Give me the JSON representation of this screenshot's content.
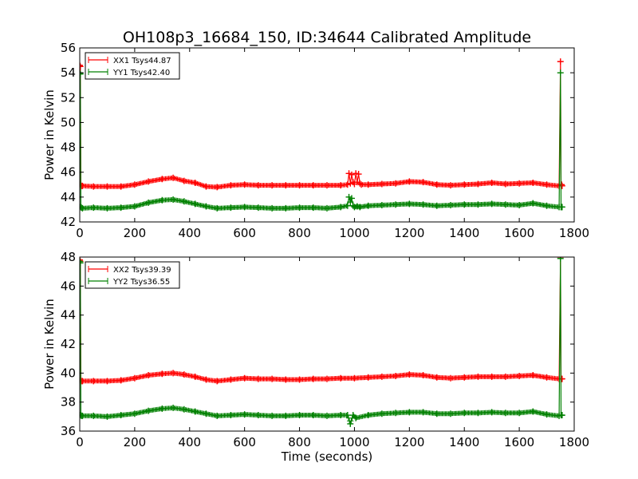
{
  "title": "OH108p3_16684_150, ID:34644 Calibrated Amplitude",
  "colors": {
    "xx": "#ff0000",
    "yy": "#008000"
  },
  "chart_data": [
    {
      "type": "line",
      "title": "OH108p3_16684_150, ID:34644 Calibrated Amplitude",
      "xlabel": "",
      "ylabel": "Power in Kelvin",
      "xlim": [
        0,
        1800
      ],
      "ylim": [
        42,
        56
      ],
      "xticks": [
        0,
        200,
        400,
        600,
        800,
        1000,
        1200,
        1400,
        1600,
        1800
      ],
      "yticks": [
        42,
        44,
        46,
        48,
        50,
        52,
        54,
        56
      ],
      "legend_position": "top-left",
      "marker": "plus",
      "series": [
        {
          "name": "XX1 Tsys44.87",
          "color": "#ff0000",
          "x": [
            0,
            2,
            4,
            6,
            10,
            50,
            100,
            150,
            200,
            250,
            300,
            340,
            380,
            420,
            460,
            500,
            550,
            600,
            650,
            700,
            750,
            800,
            850,
            900,
            950,
            975,
            980,
            985,
            990,
            995,
            1000,
            1005,
            1010,
            1015,
            1020,
            1025,
            1050,
            1100,
            1150,
            1200,
            1250,
            1300,
            1350,
            1400,
            1450,
            1500,
            1550,
            1600,
            1650,
            1700,
            1745,
            1750,
            1752,
            1754,
            1756
          ],
          "y": [
            54.6,
            54.5,
            45.0,
            44.9,
            44.9,
            44.85,
            44.85,
            44.85,
            45.0,
            45.25,
            45.45,
            45.55,
            45.3,
            45.15,
            44.85,
            44.8,
            44.95,
            45.0,
            44.95,
            44.95,
            44.95,
            44.95,
            44.95,
            44.95,
            44.95,
            45.0,
            45.9,
            45.1,
            45.8,
            45.2,
            45.05,
            45.9,
            45.2,
            45.85,
            45.1,
            45.0,
            45.0,
            45.05,
            45.1,
            45.25,
            45.2,
            45.0,
            44.95,
            45.0,
            45.05,
            45.15,
            45.05,
            45.1,
            45.15,
            45.0,
            44.9,
            54.9,
            45.0,
            45.0,
            44.9
          ]
        },
        {
          "name": "YY1 Tsys42.40",
          "color": "#008000",
          "x": [
            0,
            2,
            4,
            6,
            10,
            50,
            100,
            150,
            200,
            250,
            300,
            340,
            380,
            420,
            460,
            500,
            550,
            600,
            650,
            700,
            750,
            800,
            850,
            900,
            950,
            975,
            980,
            985,
            990,
            995,
            1000,
            1010,
            1020,
            1050,
            1100,
            1150,
            1200,
            1250,
            1300,
            1350,
            1400,
            1450,
            1500,
            1550,
            1600,
            1650,
            1700,
            1745,
            1750,
            1752,
            1754,
            1756
          ],
          "y": [
            54.0,
            53.9,
            43.2,
            43.15,
            43.1,
            43.15,
            43.1,
            43.15,
            43.25,
            43.55,
            43.75,
            43.8,
            43.65,
            43.45,
            43.25,
            43.1,
            43.15,
            43.2,
            43.15,
            43.1,
            43.1,
            43.15,
            43.15,
            43.1,
            43.2,
            43.3,
            44.0,
            43.6,
            43.9,
            43.3,
            43.2,
            43.25,
            43.2,
            43.3,
            43.35,
            43.4,
            43.45,
            43.4,
            43.3,
            43.35,
            43.4,
            43.4,
            43.45,
            43.4,
            43.35,
            43.5,
            43.3,
            43.2,
            54.0,
            43.2,
            43.2,
            43.2
          ]
        }
      ]
    },
    {
      "type": "line",
      "title": "",
      "xlabel": "Time (seconds)",
      "ylabel": "Power in Kelvin",
      "xlim": [
        0,
        1800
      ],
      "ylim": [
        36,
        48
      ],
      "xticks": [
        0,
        200,
        400,
        600,
        800,
        1000,
        1200,
        1400,
        1600,
        1800
      ],
      "yticks": [
        36,
        38,
        40,
        42,
        44,
        46,
        48
      ],
      "legend_position": "top-left",
      "marker": "plus",
      "series": [
        {
          "name": "XX2 Tsys39.39",
          "color": "#ff0000",
          "x": [
            0,
            2,
            4,
            6,
            10,
            50,
            100,
            150,
            200,
            250,
            300,
            340,
            380,
            420,
            460,
            500,
            550,
            600,
            650,
            700,
            750,
            800,
            850,
            900,
            950,
            1000,
            1050,
            1100,
            1150,
            1200,
            1250,
            1300,
            1350,
            1400,
            1450,
            1500,
            1550,
            1600,
            1650,
            1700,
            1745,
            1750,
            1752,
            1754,
            1756
          ],
          "y": [
            47.8,
            47.7,
            39.5,
            39.45,
            39.45,
            39.45,
            39.45,
            39.5,
            39.65,
            39.85,
            39.95,
            40.0,
            39.9,
            39.75,
            39.55,
            39.45,
            39.55,
            39.65,
            39.6,
            39.6,
            39.55,
            39.55,
            39.6,
            39.6,
            39.65,
            39.65,
            39.7,
            39.75,
            39.8,
            39.9,
            39.85,
            39.7,
            39.65,
            39.7,
            39.75,
            39.75,
            39.75,
            39.8,
            39.85,
            39.7,
            39.6,
            48.0,
            39.6,
            39.6,
            39.6
          ]
        },
        {
          "name": "YY2 Tsys36.55",
          "color": "#008000",
          "x": [
            0,
            2,
            4,
            6,
            10,
            50,
            100,
            150,
            200,
            250,
            300,
            340,
            380,
            420,
            460,
            500,
            550,
            600,
            650,
            700,
            750,
            800,
            850,
            900,
            950,
            975,
            985,
            995,
            1005,
            1050,
            1100,
            1150,
            1200,
            1250,
            1300,
            1350,
            1400,
            1450,
            1500,
            1550,
            1600,
            1650,
            1700,
            1745,
            1750,
            1752,
            1754,
            1756
          ],
          "y": [
            47.7,
            47.6,
            37.1,
            37.05,
            37.05,
            37.05,
            37.0,
            37.1,
            37.2,
            37.4,
            37.55,
            37.6,
            37.5,
            37.35,
            37.2,
            37.05,
            37.1,
            37.15,
            37.1,
            37.05,
            37.05,
            37.1,
            37.1,
            37.05,
            37.1,
            37.1,
            36.5,
            37.1,
            36.9,
            37.1,
            37.2,
            37.25,
            37.3,
            37.3,
            37.2,
            37.2,
            37.25,
            37.25,
            37.3,
            37.25,
            37.25,
            37.35,
            37.15,
            37.05,
            47.9,
            37.1,
            37.1,
            37.1
          ]
        }
      ]
    }
  ]
}
